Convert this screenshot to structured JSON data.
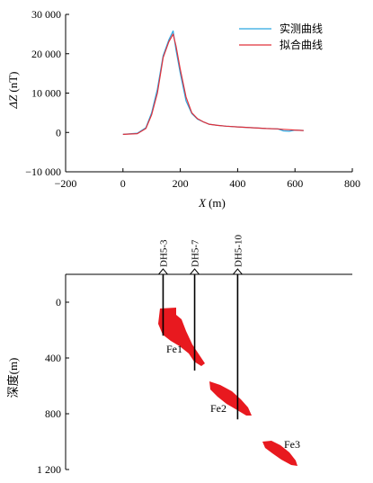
{
  "chart_data": [
    {
      "type": "line",
      "xlabel_var": "X",
      "xlabel_unit": "(m)",
      "ylabel_var": "ΔZ",
      "ylabel_unit": "(nT)",
      "xlim": [
        -200,
        800
      ],
      "ylim": [
        -10000,
        30000
      ],
      "x_ticks": [
        -200,
        0,
        200,
        400,
        600,
        800
      ],
      "x_tick_labels": [
        "−200",
        "0",
        "200",
        "400",
        "600",
        "800"
      ],
      "y_ticks": [
        -10000,
        0,
        10000,
        20000,
        30000
      ],
      "y_tick_labels": [
        "−10 000",
        "0",
        "10 000",
        "20 000",
        "30 000"
      ],
      "legend_position": "top-right",
      "series": [
        {
          "name": "实测曲线",
          "color": "#2aa6e0",
          "x": [
            0,
            50,
            80,
            100,
            120,
            140,
            160,
            175,
            185,
            200,
            220,
            240,
            260,
            280,
            300,
            330,
            360,
            400,
            450,
            500,
            540,
            560,
            580,
            600,
            630
          ],
          "y": [
            -500,
            -200,
            1200,
            5000,
            11000,
            19500,
            23500,
            25800,
            21000,
            15000,
            8000,
            4800,
            3400,
            2700,
            2100,
            1800,
            1600,
            1400,
            1200,
            1000,
            900,
            400,
            300,
            600,
            500
          ]
        },
        {
          "name": "拟合曲线",
          "color": "#e0303a",
          "x": [
            0,
            50,
            80,
            100,
            120,
            140,
            160,
            175,
            185,
            200,
            220,
            240,
            260,
            280,
            300,
            330,
            360,
            400,
            450,
            500,
            540,
            560,
            580,
            600,
            630
          ],
          "y": [
            -500,
            -300,
            1000,
            4500,
            10000,
            19000,
            23000,
            25000,
            22000,
            16000,
            9000,
            5000,
            3500,
            2700,
            2100,
            1800,
            1600,
            1400,
            1200,
            1000,
            900,
            800,
            700,
            600,
            500
          ]
        }
      ]
    },
    {
      "type": "section",
      "ylabel": "深度(m)",
      "y_ticks": [
        0,
        400,
        800,
        1200
      ],
      "y_tick_labels": [
        "0",
        "400",
        "800",
        "1 200"
      ],
      "drillholes": [
        {
          "name": "DH5-3",
          "x": 140,
          "bottom_depth": 240
        },
        {
          "name": "DH5-7",
          "x": 250,
          "bottom_depth": 490
        },
        {
          "name": "DH5-10",
          "x": 400,
          "bottom_depth": 840
        }
      ],
      "orebodies": [
        {
          "name": "Fe1",
          "color": "#e8191f"
        },
        {
          "name": "Fe2",
          "color": "#e8191f"
        },
        {
          "name": "Fe3",
          "color": "#e8191f"
        }
      ]
    }
  ]
}
